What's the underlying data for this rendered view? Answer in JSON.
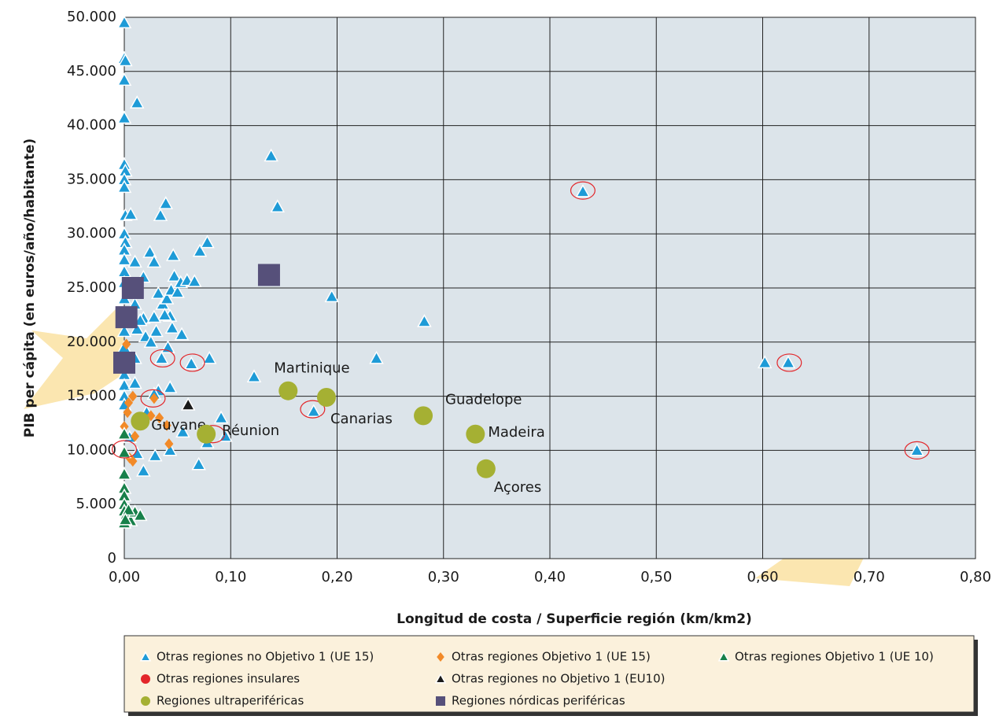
{
  "chart_data": {
    "type": "scatter",
    "x_label": "Longitud de costa / Superficie región (km/km2)",
    "y_label": "PIB per cápita (en euros/año/habitante)",
    "xlim": [
      0,
      0.8
    ],
    "ylim": [
      0,
      50000
    ],
    "xticks": [
      {
        "value": 0,
        "label": "0,00"
      },
      {
        "value": 0.1,
        "label": "0,10"
      },
      {
        "value": 0.2,
        "label": "0,20"
      },
      {
        "value": 0.3,
        "label": "0,30"
      },
      {
        "value": 0.4,
        "label": "0,40"
      },
      {
        "value": 0.5,
        "label": "0,50"
      },
      {
        "value": 0.6,
        "label": "0,60"
      },
      {
        "value": 0.7,
        "label": "0,70"
      },
      {
        "value": 0.8,
        "label": "0,80"
      }
    ],
    "yticks": [
      0,
      {
        "value": 5000,
        "label": "5.000"
      },
      {
        "value": 10000,
        "label": "10.000"
      },
      {
        "value": 15000,
        "label": "15.000"
      },
      {
        "value": 20000,
        "label": "20.000"
      },
      {
        "value": 25000,
        "label": "25.000"
      },
      {
        "value": 30000,
        "label": "30.000"
      },
      {
        "value": 35000,
        "label": "35.000"
      },
      {
        "value": 40000,
        "label": "40.000"
      },
      {
        "value": 45000,
        "label": "45.000"
      },
      {
        "value": 50000,
        "label": "50.000"
      }
    ],
    "grid": true,
    "legend": "bottom",
    "series": [
      {
        "name": "Otras regiones no Objetivo 1 (UE 15)",
        "color": "#1e9bd7",
        "marker": "triangle",
        "x": [
          0,
          0,
          0.001,
          0,
          0,
          0.012,
          0,
          0.001,
          0,
          0,
          0.001,
          0.006,
          0,
          0.001,
          0,
          0,
          0.01,
          0,
          0,
          0,
          0.012,
          0.01,
          0.018,
          0.012,
          0.02,
          0,
          0,
          0,
          0,
          0,
          0,
          0.01,
          0.01,
          0.015,
          0.018,
          0.024,
          0.028,
          0.034,
          0.039,
          0.046,
          0.047,
          0.032,
          0.036,
          0.04,
          0.044,
          0.05,
          0.053,
          0.059,
          0.066,
          0.071,
          0.078,
          0.043,
          0.038,
          0.028,
          0.03,
          0.045,
          0.054,
          0.041,
          0.025,
          0.035,
          0.063,
          0.08,
          0.138,
          0.144,
          0.195,
          0.282,
          0.237,
          0.122,
          0.178,
          0.032,
          0.043,
          0.028,
          0.021,
          0.055,
          0.043,
          0.018,
          0.029,
          0.07,
          0.078,
          0.091,
          0.095,
          0.005,
          0.012,
          0.431,
          0.602,
          0.624,
          0.745
        ],
        "values": [
          49500,
          46200,
          46000,
          44200,
          40700,
          42100,
          36400,
          35800,
          35000,
          34300,
          31700,
          31800,
          30000,
          29200,
          28500,
          27600,
          27400,
          26500,
          25500,
          24000,
          24500,
          23500,
          22200,
          21200,
          20500,
          21000,
          19500,
          17000,
          16000,
          15000,
          14200,
          16200,
          18500,
          22000,
          26000,
          28300,
          27400,
          31700,
          32800,
          28000,
          26100,
          24500,
          23500,
          24000,
          24800,
          24600,
          25500,
          25700,
          25600,
          28400,
          29200,
          22400,
          22500,
          22300,
          21000,
          21300,
          20700,
          19500,
          20000,
          18500,
          18000,
          18500,
          37200,
          32500,
          24200,
          21900,
          18500,
          16800,
          13600,
          15500,
          15800,
          15200,
          13500,
          11700,
          10000,
          8100,
          9500,
          8700,
          10700,
          13000,
          11300,
          11200,
          9700,
          33900,
          18100,
          18100,
          10000
        ]
      },
      {
        "name": "Otras regiones Objetivo 1 (UE 15)",
        "color": "#f28a28",
        "marker": "diamond",
        "x": [
          0.002,
          0.004,
          0.008,
          0.028,
          0.025,
          0.033,
          0.04,
          0.042,
          0.01,
          0.005,
          0.008,
          0,
          0.003
        ],
        "values": [
          19800,
          14400,
          15000,
          14800,
          13200,
          13000,
          12300,
          10600,
          11300,
          9300,
          9000,
          12200,
          13500
        ]
      },
      {
        "name": "Otras regiones Objetivo 1 (UE 10)",
        "color": "#17804a",
        "marker": "triangle",
        "x": [
          0,
          0,
          0,
          0,
          0,
          0,
          0,
          0.002,
          0.003,
          0.006,
          0.01,
          0.015,
          0,
          0.004,
          0.001
        ],
        "values": [
          11500,
          9800,
          7800,
          6500,
          5800,
          5000,
          4400,
          4100,
          3900,
          3500,
          4300,
          4000,
          3300,
          4500,
          3600
        ]
      },
      {
        "name": "Otras regiones insulares",
        "color": "#e3262a",
        "marker": "ring",
        "x": [
          0,
          0.027,
          0.036,
          0.064,
          0.083,
          0.177,
          0.431,
          0.625,
          0.745
        ],
        "values": [
          10100,
          14800,
          18500,
          18100,
          11500,
          13800,
          34000,
          18100,
          10000
        ]
      },
      {
        "name": "Otras regiones no Objetivo 1 (EU10)",
        "color": "#1a1a1a",
        "marker": "triangle",
        "x": [
          0.06
        ],
        "values": [
          14200
        ]
      },
      {
        "name": "Regiones ultraperiféricas",
        "color": "#a5b033",
        "marker": "circle",
        "x": [
          0.015,
          0.077,
          0.154,
          0.19,
          0.281,
          0.33,
          0.34
        ],
        "values": [
          12700,
          11500,
          15500,
          14900,
          13200,
          11500,
          8300
        ],
        "labels": [
          "Guyane",
          "Réunion",
          "Martinique",
          "Canarias",
          "Guadelope",
          "Madeira",
          "Açores"
        ]
      },
      {
        "name": "Regiones nórdicas periféricas",
        "color": "#56507a",
        "marker": "square",
        "x": [
          0.008,
          0.002,
          0,
          0.136
        ],
        "values": [
          25000,
          22300,
          18100,
          26200
        ]
      }
    ]
  }
}
